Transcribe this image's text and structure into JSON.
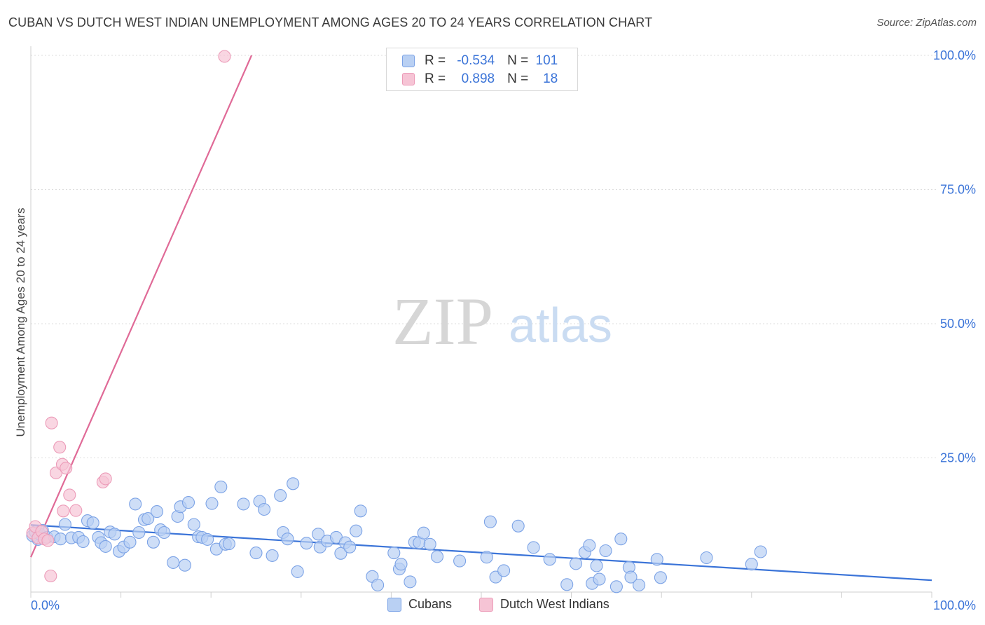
{
  "title": "CUBAN VS DUTCH WEST INDIAN UNEMPLOYMENT AMONG AGES 20 TO 24 YEARS CORRELATION CHART",
  "source": "Source: ZipAtlas.com",
  "watermark": {
    "zip": "ZIP",
    "atlas": "atlas"
  },
  "colors": {
    "blue": "#3b74d8",
    "blue_fill": "#b9d0f3",
    "blue_stroke": "#7ca3e6",
    "pink": "#e06a97",
    "pink_fill": "#f6c4d5",
    "pink_stroke": "#ec9bb8",
    "grid": "#dddddd",
    "axis_text": "#3b74d8"
  },
  "stats_legend": {
    "rows": [
      {
        "r_label": "R =",
        "r_value": "-0.534",
        "n_label": "N =",
        "n_value": "101",
        "series": "Cubans"
      },
      {
        "r_label": "R =",
        "r_value": "0.898",
        "n_label": "N =",
        "n_value": "18",
        "series": "Dutch West Indians"
      }
    ]
  },
  "chart_data": {
    "type": "scatter",
    "title": "CUBAN VS DUTCH WEST INDIAN UNEMPLOYMENT AMONG AGES 20 TO 24 YEARS CORRELATION CHART",
    "xlabel": "",
    "ylabel": "Unemployment Among Ages 20 to 24 years",
    "xlim": [
      0,
      100
    ],
    "ylim": [
      0,
      100
    ],
    "x_tick_labels": [
      "0.0%",
      "100.0%"
    ],
    "y_tick_labels": [
      "25.0%",
      "50.0%",
      "75.0%",
      "100.0%"
    ],
    "y_ticks": [
      25,
      50,
      75,
      100
    ],
    "grid": true,
    "legend": "bottom-center",
    "series": [
      {
        "name": "Cubans",
        "color": "#3b74d8",
        "trend": {
          "x": [
            0,
            100
          ],
          "y": [
            12.5,
            2.2
          ]
        },
        "points": [
          [
            0.2,
            10.5
          ],
          [
            0.5,
            11.2
          ],
          [
            0.8,
            9.8
          ],
          [
            1.0,
            10.8
          ],
          [
            1.3,
            11.5
          ],
          [
            1.8,
            10.2
          ],
          [
            2.6,
            10.3
          ],
          [
            3.3,
            9.9
          ],
          [
            3.8,
            12.6
          ],
          [
            4.5,
            10.1
          ],
          [
            5.3,
            10.2
          ],
          [
            5.8,
            9.4
          ],
          [
            6.3,
            13.3
          ],
          [
            6.9,
            12.9
          ],
          [
            7.5,
            10.2
          ],
          [
            7.8,
            9.2
          ],
          [
            8.3,
            8.5
          ],
          [
            8.8,
            11.2
          ],
          [
            9.3,
            10.8
          ],
          [
            9.8,
            7.6
          ],
          [
            10.3,
            8.4
          ],
          [
            11.0,
            9.3
          ],
          [
            11.6,
            16.4
          ],
          [
            12.0,
            11.1
          ],
          [
            12.6,
            13.5
          ],
          [
            13.0,
            13.7
          ],
          [
            13.6,
            9.3
          ],
          [
            14.0,
            15.0
          ],
          [
            14.4,
            11.6
          ],
          [
            14.8,
            11.1
          ],
          [
            15.8,
            5.5
          ],
          [
            16.3,
            14.1
          ],
          [
            16.6,
            15.9
          ],
          [
            17.1,
            5.0
          ],
          [
            17.5,
            16.7
          ],
          [
            18.1,
            12.6
          ],
          [
            18.6,
            10.3
          ],
          [
            19.0,
            10.2
          ],
          [
            19.6,
            9.8
          ],
          [
            20.1,
            16.5
          ],
          [
            20.6,
            8.0
          ],
          [
            21.1,
            19.6
          ],
          [
            21.6,
            8.9
          ],
          [
            22.0,
            9.0
          ],
          [
            23.6,
            16.4
          ],
          [
            25.0,
            7.3
          ],
          [
            25.4,
            16.9
          ],
          [
            25.9,
            15.4
          ],
          [
            26.8,
            6.8
          ],
          [
            27.7,
            18.0
          ],
          [
            28.0,
            11.1
          ],
          [
            28.5,
            9.9
          ],
          [
            29.1,
            20.2
          ],
          [
            29.6,
            3.8
          ],
          [
            30.6,
            9.1
          ],
          [
            31.9,
            10.8
          ],
          [
            32.1,
            8.4
          ],
          [
            32.9,
            9.5
          ],
          [
            33.9,
            10.2
          ],
          [
            34.4,
            7.2
          ],
          [
            34.9,
            9.2
          ],
          [
            35.4,
            8.4
          ],
          [
            36.1,
            11.4
          ],
          [
            36.6,
            15.1
          ],
          [
            37.9,
            2.9
          ],
          [
            38.5,
            1.3
          ],
          [
            40.3,
            7.3
          ],
          [
            40.9,
            4.3
          ],
          [
            41.1,
            5.2
          ],
          [
            42.1,
            1.9
          ],
          [
            42.6,
            9.3
          ],
          [
            43.1,
            9.2
          ],
          [
            43.6,
            11.0
          ],
          [
            44.3,
            8.9
          ],
          [
            45.1,
            6.6
          ],
          [
            47.6,
            5.8
          ],
          [
            50.6,
            6.5
          ],
          [
            51.0,
            13.1
          ],
          [
            51.6,
            2.8
          ],
          [
            52.5,
            4.0
          ],
          [
            54.1,
            12.3
          ],
          [
            55.8,
            8.3
          ],
          [
            57.6,
            6.1
          ],
          [
            60.5,
            5.3
          ],
          [
            61.5,
            7.4
          ],
          [
            62.0,
            8.7
          ],
          [
            62.3,
            1.6
          ],
          [
            62.8,
            4.9
          ],
          [
            63.1,
            2.4
          ],
          [
            63.8,
            7.7
          ],
          [
            65.5,
            9.9
          ],
          [
            66.4,
            4.6
          ],
          [
            66.6,
            2.8
          ],
          [
            67.5,
            1.3
          ],
          [
            69.5,
            6.1
          ],
          [
            69.9,
            2.7
          ],
          [
            75.0,
            6.4
          ],
          [
            80.0,
            5.2
          ],
          [
            81.0,
            7.5
          ],
          [
            65.0,
            1.0
          ],
          [
            59.5,
            1.4
          ]
        ]
      },
      {
        "name": "Dutch West Indians",
        "color": "#e06a97",
        "trend": {
          "x": [
            0,
            24.5
          ],
          "y": [
            6.5,
            100
          ]
        },
        "points": [
          [
            0.2,
            11.0
          ],
          [
            0.5,
            12.2
          ],
          [
            0.8,
            10.1
          ],
          [
            1.2,
            11.3
          ],
          [
            1.5,
            9.9
          ],
          [
            1.9,
            9.6
          ],
          [
            2.2,
            3.0
          ],
          [
            2.3,
            31.5
          ],
          [
            2.8,
            22.2
          ],
          [
            3.2,
            27.0
          ],
          [
            3.5,
            23.8
          ],
          [
            3.6,
            15.1
          ],
          [
            3.9,
            23.1
          ],
          [
            4.3,
            18.1
          ],
          [
            5.0,
            15.2
          ],
          [
            8.0,
            20.5
          ],
          [
            8.3,
            21.1
          ],
          [
            21.5,
            99.8
          ]
        ]
      }
    ]
  }
}
